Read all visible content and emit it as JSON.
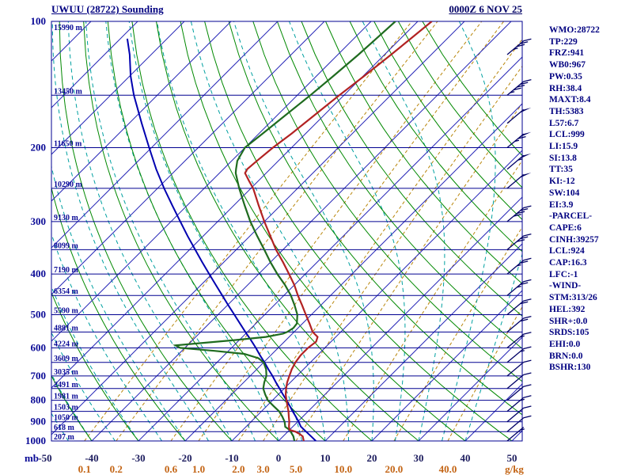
{
  "header": {
    "title": "UWUU (28722) Sounding",
    "datetime": "0000Z  6 NOV 25"
  },
  "stats": [
    "WMO:28722",
    "TP:229",
    "FRZ:941",
    "WB0:967",
    "PW:0.35",
    "RH:38.4",
    "MAXT:8.4",
    "TH:5383",
    "L57:6.7",
    "LCL:999",
    "LI:15.9",
    "SI:13.8",
    "TT:35",
    "KI:-12",
    "SW:104",
    "EI:3.9",
    "-PARCEL-",
    "CAPE:6",
    "CINH:39257",
    "LCL:924",
    "CAP:16.3",
    "LFC:-1",
    "-WIND-",
    "STM:313/26",
    "HEL:392",
    "SHR+:0.0",
    "SRDS:105",
    "EHI:0.0",
    "BRN:0.0",
    "BSHR:130"
  ],
  "chart_data": {
    "type": "skewt_log_p",
    "station_id": "28722",
    "pressure_axis": {
      "unit": "mb",
      "ticks": [
        100,
        200,
        300,
        400,
        500,
        600,
        700,
        800,
        900,
        1000
      ],
      "isobar_step": 50,
      "range": [
        100,
        1000
      ]
    },
    "temperature_axis": {
      "unit": "C",
      "ticks": [
        -50,
        -40,
        -30,
        -20,
        -10,
        0,
        10,
        20,
        30,
        40,
        50
      ],
      "isotherm_step": 10
    },
    "altitude_labels": [
      {
        "p": 100,
        "label": "15990 m"
      },
      {
        "p": 150,
        "label": "13450 m"
      },
      {
        "p": 200,
        "label": "11650 m"
      },
      {
        "p": 250,
        "label": "10290 m"
      },
      {
        "p": 300,
        "label": "9130 m"
      },
      {
        "p": 350,
        "label": "8099 m"
      },
      {
        "p": 400,
        "label": "7190 m"
      },
      {
        "p": 450,
        "label": "6354 m"
      },
      {
        "p": 500,
        "label": "5590 m"
      },
      {
        "p": 550,
        "label": "4881 m"
      },
      {
        "p": 600,
        "label": "4224 m"
      },
      {
        "p": 650,
        "label": "3609 m"
      },
      {
        "p": 700,
        "label": "3035 m"
      },
      {
        "p": 750,
        "label": "2491 m"
      },
      {
        "p": 800,
        "label": "1981 m"
      },
      {
        "p": 850,
        "label": "1503 m"
      },
      {
        "p": 900,
        "label": "1050 m"
      },
      {
        "p": 950,
        "label": "618 m"
      },
      {
        "p": 1000,
        "label": "207 m"
      }
    ],
    "mixing_ratio": {
      "unit": "g/kg",
      "values": [
        0.1,
        0.2,
        0.6,
        1.0,
        2.0,
        3.0,
        5.0,
        10.0,
        20.0,
        40.0
      ]
    },
    "series": {
      "temperature": [
        [
          1000,
          5.4
        ],
        [
          975,
          4.2
        ],
        [
          962,
          3.0
        ],
        [
          950,
          1.6
        ],
        [
          941,
          0.0
        ],
        [
          925,
          -0.8
        ],
        [
          900,
          -1.8
        ],
        [
          875,
          -3.0
        ],
        [
          850,
          -4.2
        ],
        [
          825,
          -5.6
        ],
        [
          800,
          -7.0
        ],
        [
          775,
          -8.4
        ],
        [
          750,
          -9.6
        ],
        [
          725,
          -10.7
        ],
        [
          700,
          -11.6
        ],
        [
          675,
          -12.5
        ],
        [
          650,
          -13.2
        ],
        [
          625,
          -13.6
        ],
        [
          600,
          -13.6
        ],
        [
          580,
          -13.2
        ],
        [
          565,
          -13.9
        ],
        [
          550,
          -16.0
        ],
        [
          525,
          -18.5
        ],
        [
          500,
          -21.2
        ],
        [
          475,
          -24.0
        ],
        [
          450,
          -27.0
        ],
        [
          425,
          -30.0
        ],
        [
          400,
          -33.5
        ],
        [
          375,
          -37.3
        ],
        [
          350,
          -41.5
        ],
        [
          325,
          -45.6
        ],
        [
          300,
          -50.0
        ],
        [
          275,
          -54.6
        ],
        [
          250,
          -59.5
        ],
        [
          240,
          -62.0
        ],
        [
          230,
          -64.5
        ],
        [
          225,
          -64.9
        ],
        [
          215,
          -64.6
        ],
        [
          200,
          -64.0
        ],
        [
          185,
          -63.0
        ],
        [
          170,
          -62.2
        ],
        [
          150,
          -61.0
        ],
        [
          135,
          -59.8
        ],
        [
          120,
          -58.6
        ],
        [
          110,
          -57.8
        ],
        [
          100,
          -57.0
        ]
      ],
      "dewpoint": [
        [
          1000,
          3.4
        ],
        [
          975,
          2.2
        ],
        [
          950,
          0.6
        ],
        [
          941,
          0.0
        ],
        [
          925,
          -1.6
        ],
        [
          900,
          -2.8
        ],
        [
          875,
          -4.4
        ],
        [
          850,
          -6.2
        ],
        [
          825,
          -8.6
        ],
        [
          800,
          -11.0
        ],
        [
          775,
          -12.8
        ],
        [
          750,
          -14.5
        ],
        [
          725,
          -15.6
        ],
        [
          700,
          -16.5
        ],
        [
          675,
          -18.0
        ],
        [
          650,
          -20.0
        ],
        [
          635,
          -22.0
        ],
        [
          620,
          -26.0
        ],
        [
          610,
          -33.0
        ],
        [
          600,
          -41.0
        ],
        [
          592,
          -42.5
        ],
        [
          585,
          -38.0
        ],
        [
          575,
          -31.0
        ],
        [
          565,
          -25.0
        ],
        [
          555,
          -22.0
        ],
        [
          550,
          -21.5
        ],
        [
          538,
          -21.0
        ],
        [
          525,
          -21.2
        ],
        [
          500,
          -23.0
        ],
        [
          475,
          -25.6
        ],
        [
          450,
          -28.5
        ],
        [
          425,
          -32.0
        ],
        [
          400,
          -36.0
        ],
        [
          375,
          -40.0
        ],
        [
          350,
          -44.0
        ],
        [
          325,
          -48.4
        ],
        [
          300,
          -53.0
        ],
        [
          275,
          -57.6
        ],
        [
          250,
          -62.5
        ],
        [
          230,
          -66.5
        ],
        [
          225,
          -67.3
        ],
        [
          215,
          -68.8
        ],
        [
          200,
          -70.0
        ],
        [
          185,
          -69.2
        ],
        [
          170,
          -68.4
        ],
        [
          150,
          -67.2
        ],
        [
          135,
          -66.4
        ],
        [
          120,
          -65.6
        ],
        [
          110,
          -65.2
        ],
        [
          100,
          -64.8
        ]
      ],
      "parcel": [
        [
          1000,
          8.0
        ],
        [
          975,
          6.0
        ],
        [
          950,
          3.9
        ],
        [
          924,
          1.7
        ],
        [
          900,
          0.2
        ],
        [
          875,
          -1.5
        ],
        [
          850,
          -3.3
        ],
        [
          825,
          -5.1
        ],
        [
          800,
          -7.0
        ],
        [
          775,
          -9.0
        ],
        [
          750,
          -11.0
        ],
        [
          725,
          -13.1
        ],
        [
          700,
          -15.2
        ],
        [
          675,
          -17.5
        ],
        [
          650,
          -19.8
        ],
        [
          625,
          -22.3
        ],
        [
          600,
          -24.8
        ],
        [
          575,
          -27.5
        ],
        [
          550,
          -30.4
        ],
        [
          525,
          -33.4
        ],
        [
          500,
          -36.5
        ],
        [
          475,
          -39.8
        ],
        [
          450,
          -43.2
        ],
        [
          425,
          -46.8
        ],
        [
          400,
          -50.6
        ],
        [
          375,
          -54.6
        ],
        [
          350,
          -58.8
        ],
        [
          325,
          -63.3
        ],
        [
          300,
          -68.0
        ],
        [
          275,
          -73.1
        ],
        [
          250,
          -78.6
        ],
        [
          225,
          -84.4
        ],
        [
          200,
          -90.5
        ],
        [
          175,
          -97.3
        ],
        [
          150,
          -105.0
        ],
        [
          135,
          -109.8
        ],
        [
          120,
          -114.6
        ],
        [
          110,
          -118.5
        ]
      ]
    },
    "wind_barbs": [
      {
        "p": 120,
        "spd": 35
      },
      {
        "p": 150,
        "spd": 45
      },
      {
        "p": 175,
        "spd": 50
      },
      {
        "p": 200,
        "spd": 65
      },
      {
        "p": 225,
        "spd": 55
      },
      {
        "p": 250,
        "spd": 50
      },
      {
        "p": 300,
        "spd": 40
      },
      {
        "p": 350,
        "spd": 30
      },
      {
        "p": 400,
        "spd": 25
      },
      {
        "p": 450,
        "spd": 25
      },
      {
        "p": 500,
        "spd": 20
      },
      {
        "p": 550,
        "spd": 20
      },
      {
        "p": 600,
        "spd": 15
      },
      {
        "p": 650,
        "spd": 15
      },
      {
        "p": 700,
        "spd": 10
      },
      {
        "p": 750,
        "spd": 10
      },
      {
        "p": 800,
        "spd": 10
      },
      {
        "p": 850,
        "spd": 15
      },
      {
        "p": 900,
        "spd": 10
      },
      {
        "p": 950,
        "spd": 10
      },
      {
        "p": 1000,
        "spd": 5
      }
    ],
    "colors": {
      "isobar": "#000090",
      "isotherm": "#2828b8",
      "dry_adiabat": "#008800",
      "moist_adiabat": "#00a0a0",
      "mixing_ratio_line": "#b8860b",
      "temperature_trace": "#b22222",
      "dewpoint_trace": "#1f6b1f",
      "parcel_trace": "#0000b0",
      "wind_barb": "#000066",
      "axis_text": "#0a0a96",
      "temp_tick_text": "#1c1c5e",
      "mixing_text": "#c36414"
    }
  }
}
